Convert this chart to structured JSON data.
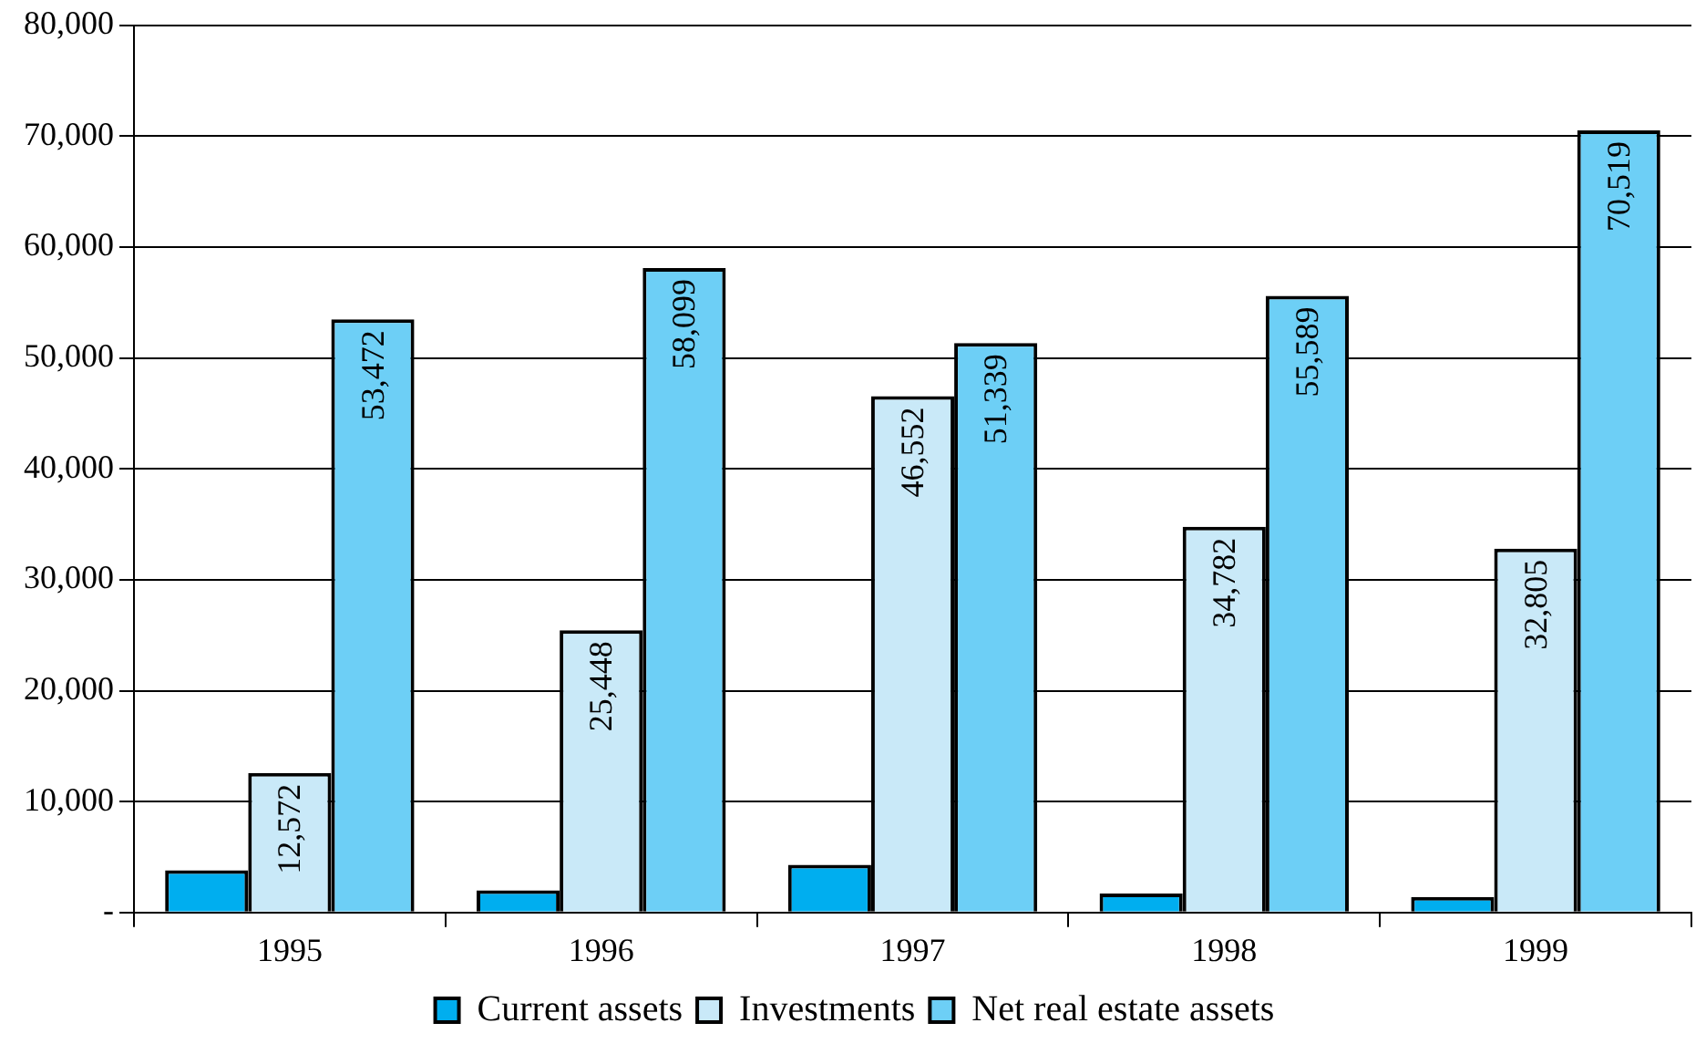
{
  "chart_data": {
    "type": "bar",
    "categories": [
      "1995",
      "1996",
      "1997",
      "1998",
      "1999"
    ],
    "series": [
      {
        "name": "Current assets",
        "color": "#00aeef",
        "values": [
          3800,
          2000,
          4300,
          1700,
          1400
        ]
      },
      {
        "name": "Investments",
        "color": "#c9e9f8",
        "values": [
          12572,
          25448,
          46552,
          34782,
          32805
        ],
        "value_labels": [
          "12,572",
          "25,448",
          "46,552",
          "34,782",
          "32,805"
        ]
      },
      {
        "name": "Net real estate assets",
        "color": "#6dcff6",
        "values": [
          53472,
          58099,
          51339,
          55589,
          70519
        ],
        "value_labels": [
          "53,472",
          "58,099",
          "51,339",
          "55,589",
          "70,519"
        ]
      }
    ],
    "ylim": [
      0,
      80000
    ],
    "yticks": [
      {
        "value": 0,
        "label": "-"
      },
      {
        "value": 10000,
        "label": "10,000"
      },
      {
        "value": 20000,
        "label": "20,000"
      },
      {
        "value": 30000,
        "label": "30,000"
      },
      {
        "value": 40000,
        "label": "40,000"
      },
      {
        "value": 50000,
        "label": "50,000"
      },
      {
        "value": 60000,
        "label": "60,000"
      },
      {
        "value": 70000,
        "label": "70,000"
      },
      {
        "value": 80000,
        "label": "80,000"
      }
    ],
    "grid": "y",
    "legend": "bottom"
  }
}
